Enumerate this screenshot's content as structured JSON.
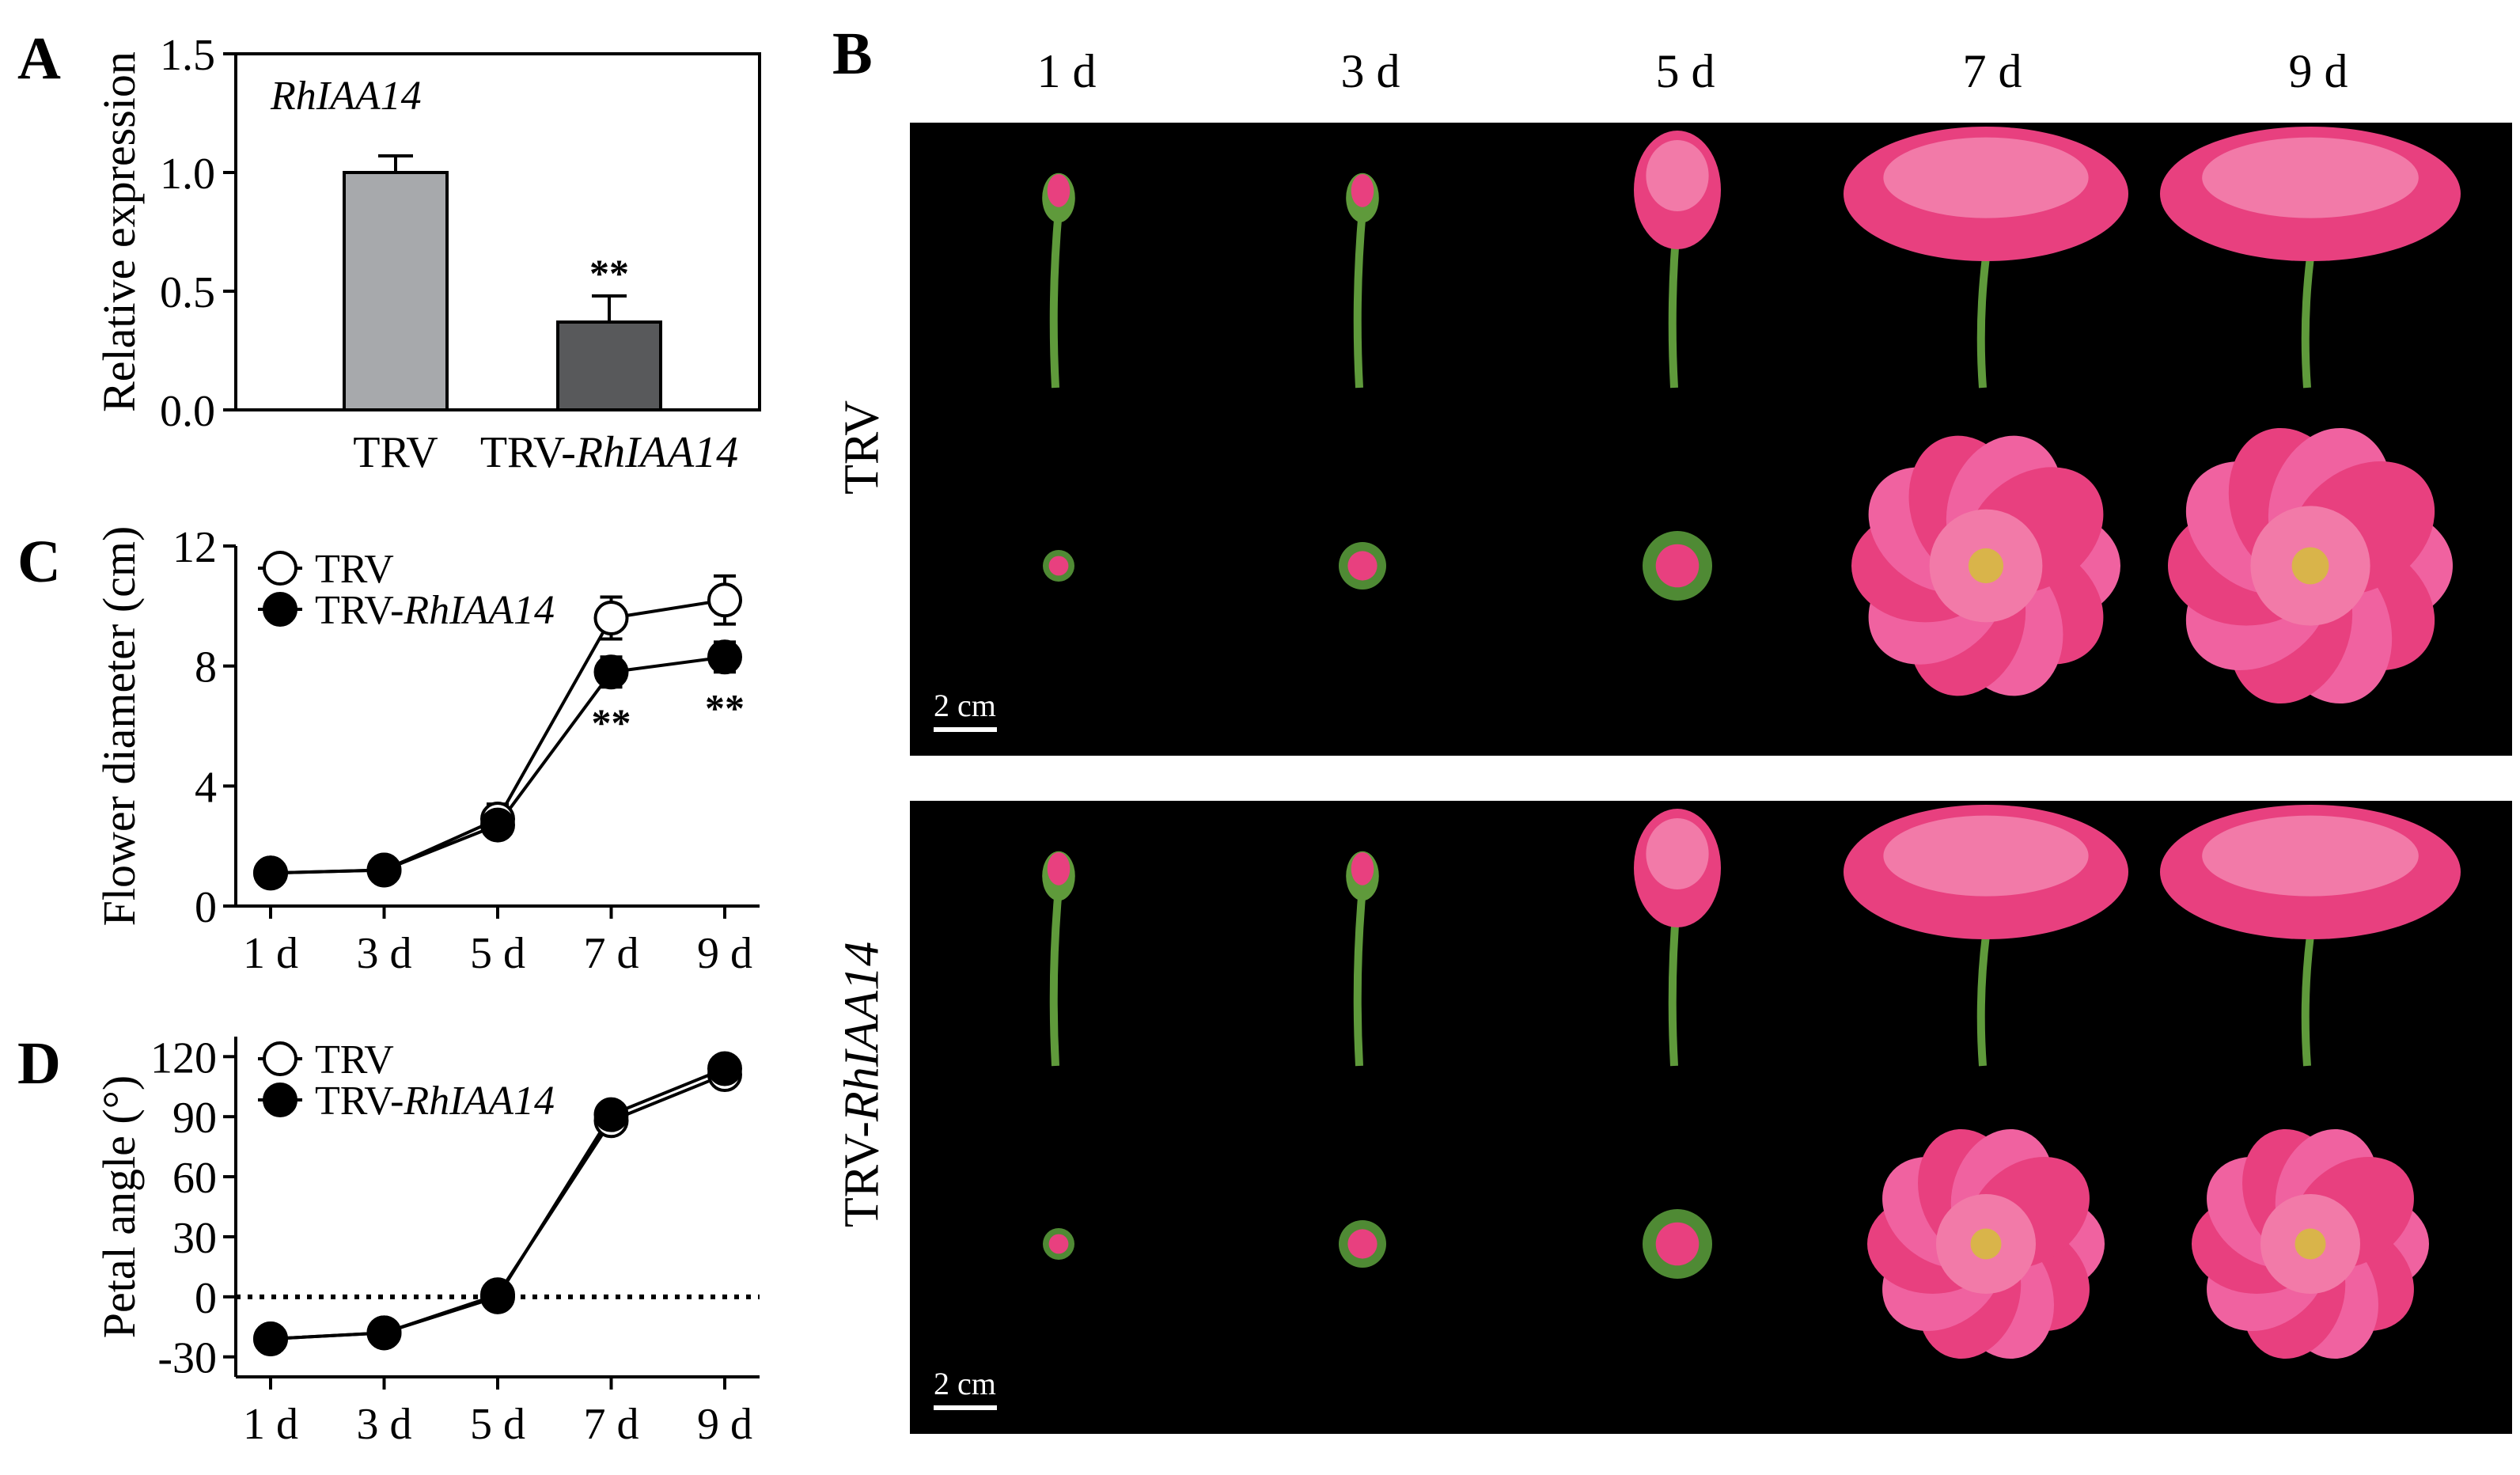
{
  "panel_letters": {
    "a": "A",
    "b": "B",
    "c": "C",
    "d": "D"
  },
  "panel_b": {
    "days": [
      "1 d",
      "3 d",
      "5 d",
      "7 d",
      "9 d"
    ],
    "rows": [
      {
        "label_plain": "TRV",
        "label_italic": ""
      },
      {
        "label_plain": "TRV-",
        "label_italic": "RhIAA14"
      }
    ],
    "scale_bar": "2 cm",
    "flower_color": "#e8407f",
    "background": "#000000"
  },
  "chart_data": [
    {
      "id": "A",
      "type": "bar",
      "title": "RhIAA14",
      "ylabel": "Relative expression",
      "categories": [
        {
          "plain": "TRV",
          "italic": ""
        },
        {
          "plain": "TRV-",
          "italic": "RhIAA14"
        }
      ],
      "values": [
        1.0,
        0.37
      ],
      "errors": [
        0.07,
        0.11
      ],
      "significance": [
        "",
        "**"
      ],
      "ylim": [
        0,
        1.5
      ],
      "yticks": [
        "0.0",
        "0.5",
        "1.0",
        "1.5"
      ],
      "ytick_values": [
        0,
        0.5,
        1.0,
        1.5
      ],
      "colors": [
        "#a7a9ac",
        "#58595b"
      ]
    },
    {
      "id": "C",
      "type": "line",
      "ylabel": "Flower diameter (cm)",
      "categories": [
        "1 d",
        "3 d",
        "5 d",
        "7 d",
        "9 d"
      ],
      "ylim": [
        0,
        12
      ],
      "yticks": [
        "0",
        "4",
        "8",
        "12"
      ],
      "ytick_values": [
        0,
        4,
        8,
        12
      ],
      "series": [
        {
          "name_plain": "TRV",
          "name_italic": "",
          "marker": "open",
          "values": [
            1.1,
            1.2,
            2.9,
            9.6,
            10.2
          ],
          "errors": [
            0.1,
            0.1,
            0.5,
            0.7,
            0.8
          ]
        },
        {
          "name_plain": "TRV-",
          "name_italic": "RhIAA14",
          "marker": "filled",
          "values": [
            1.1,
            1.2,
            2.7,
            7.8,
            8.3
          ],
          "errors": [
            0.1,
            0.1,
            0.4,
            0.5,
            0.5
          ]
        }
      ],
      "significance": [
        "",
        "",
        "",
        "**",
        "**"
      ],
      "legend": "top-left"
    },
    {
      "id": "D",
      "type": "line",
      "ylabel": "Petal angle (°)",
      "categories": [
        "1 d",
        "3 d",
        "5 d",
        "7 d",
        "9 d"
      ],
      "ylim": [
        -40,
        130
      ],
      "yticks": [
        "-30",
        "0",
        "30",
        "60",
        "90",
        "120"
      ],
      "ytick_values": [
        -30,
        0,
        30,
        60,
        90,
        120
      ],
      "series": [
        {
          "name_plain": "TRV",
          "name_italic": "",
          "marker": "open",
          "values": [
            -21,
            -18,
            1,
            88,
            111
          ],
          "errors": [
            2,
            2,
            2,
            3,
            3
          ]
        },
        {
          "name_plain": "TRV-",
          "name_italic": "RhIAA14",
          "marker": "filled",
          "values": [
            -21,
            -18,
            0,
            91,
            114
          ],
          "errors": [
            2,
            2,
            2,
            3,
            3
          ]
        }
      ],
      "zero_line": "dotted",
      "legend": "top-left"
    }
  ]
}
